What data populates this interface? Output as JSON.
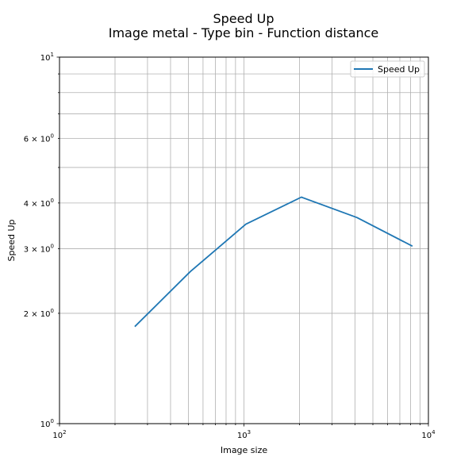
{
  "chart_data": {
    "type": "line",
    "title": "Speed Up",
    "subtitle": "Image metal - Type bin - Function distance",
    "xlabel": "Image size",
    "ylabel": "Speed Up",
    "xscale": "log",
    "yscale": "log",
    "xlim": [
      100,
      10000
    ],
    "ylim": [
      1,
      10
    ],
    "grid": true,
    "legend_position": "top-right",
    "x_major_ticks": [
      {
        "value": 100,
        "base": "10",
        "exp": "2"
      },
      {
        "value": 1000,
        "base": "10",
        "exp": "3"
      },
      {
        "value": 10000,
        "base": "10",
        "exp": "4"
      }
    ],
    "y_major_ticks": [
      {
        "value": 1,
        "base": "10",
        "exp": "0"
      },
      {
        "value": 10,
        "base": "10",
        "exp": "1"
      }
    ],
    "y_minor_labeled_ticks": [
      {
        "value": 2,
        "base": "2 × 10",
        "exp": "0"
      },
      {
        "value": 3,
        "base": "3 × 10",
        "exp": "0"
      },
      {
        "value": 4,
        "base": "4 × 10",
        "exp": "0"
      },
      {
        "value": 6,
        "base": "6 × 10",
        "exp": "0"
      }
    ],
    "series": [
      {
        "name": "Speed Up",
        "color": "#1f77b4",
        "x": [
          256,
          512,
          1024,
          2048,
          4096,
          8192
        ],
        "y": [
          1.84,
          2.6,
          3.5,
          4.15,
          3.65,
          3.05
        ]
      }
    ]
  }
}
